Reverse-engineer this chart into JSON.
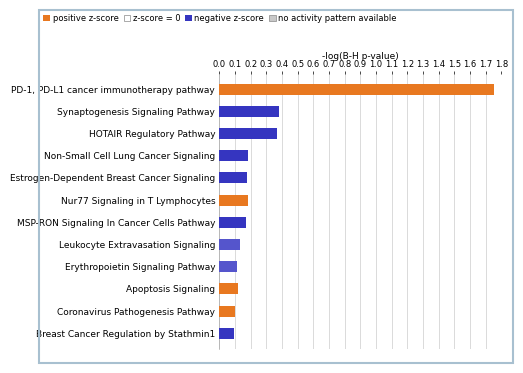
{
  "pathways": [
    "PD-1, PD-L1 cancer immunotherapy pathway",
    "Synaptogenesis Signaling Pathway",
    "HOTAIR Regulatory Pathway",
    "Non-Small Cell Lung Cancer Signaling",
    "Estrogen-Dependent Breast Cancer Signaling",
    "Nur77 Signaling in T Lymphocytes",
    "MSP-RON Signaling In Cancer Cells Pathway",
    "Leukocyte Extravasation Signaling",
    "Erythropoietin Signaling Pathway",
    "Apoptosis Signaling",
    "Coronavirus Pathogenesis Pathway",
    "Breast Cancer Regulation by Stathmin1"
  ],
  "values": [
    1.75,
    0.38,
    0.37,
    0.18,
    0.175,
    0.185,
    0.17,
    0.13,
    0.115,
    0.12,
    0.1,
    0.09
  ],
  "colors": [
    "#E87820",
    "#3535C0",
    "#3535C0",
    "#3535C0",
    "#3535C0",
    "#E87820",
    "#3535C0",
    "#5555CC",
    "#5555CC",
    "#E87820",
    "#E87820",
    "#3535C0"
  ],
  "xlabel": "-log(B-H p-value)",
  "xlim": [
    0.0,
    1.8
  ],
  "xticks": [
    0.0,
    0.1,
    0.2,
    0.3,
    0.4,
    0.5,
    0.6,
    0.7,
    0.8,
    0.9,
    1.0,
    1.1,
    1.2,
    1.3,
    1.4,
    1.5,
    1.6,
    1.7,
    1.8
  ],
  "legend_items": [
    {
      "label": "positive z-score",
      "color": "#E87820"
    },
    {
      "label": "z-score = 0",
      "color": "#FFFFFF"
    },
    {
      "label": "negative z-score",
      "color": "#3535C0"
    },
    {
      "label": "no activity pattern available",
      "color": "#C8C8C8"
    }
  ],
  "bg_color": "#FFFFFF",
  "border_color": "#A8C0D0",
  "bar_height": 0.5,
  "tick_fontsize": 6.0,
  "label_fontsize": 6.5,
  "legend_fontsize": 6.0,
  "xlabel_fontsize": 6.5
}
